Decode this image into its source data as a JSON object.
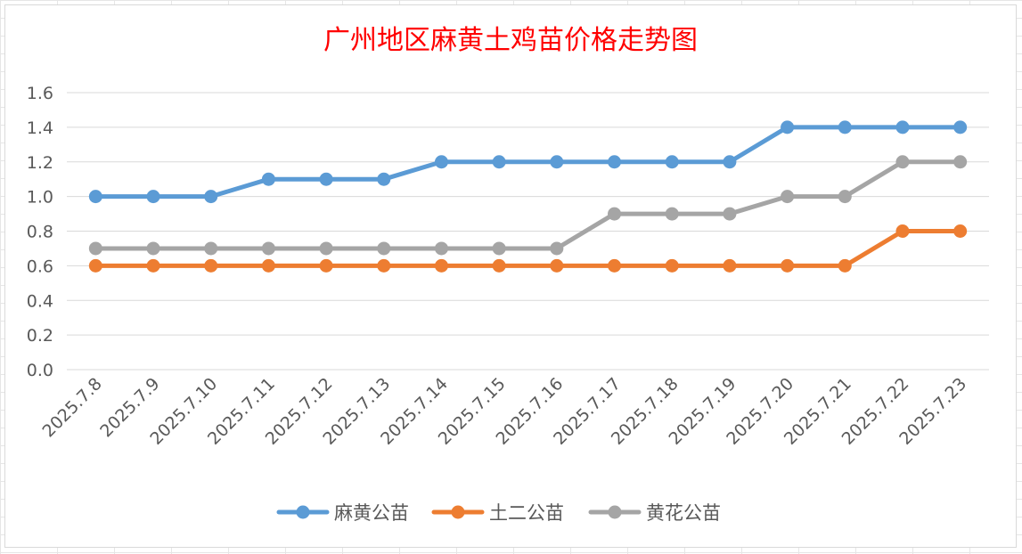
{
  "chart_data": {
    "type": "line",
    "title": "广州地区麻黄土鸡苗价格走势图",
    "xlabel": "",
    "ylabel": "",
    "categories": [
      "2025.7.8",
      "2025.7.9",
      "2025.7.10",
      "2025.7.11",
      "2025.7.12",
      "2025.7.13",
      "2025.7.14",
      "2025.7.15",
      "2025.7.16",
      "2025.7.17",
      "2025.7.18",
      "2025.7.19",
      "2025.7.20",
      "2025.7.21",
      "2025.7.22",
      "2025.7.23"
    ],
    "yticks": [
      "0.0",
      "0.2",
      "0.4",
      "0.6",
      "0.8",
      "1.0",
      "1.2",
      "1.4",
      "1.6"
    ],
    "ylim": [
      0,
      1.6
    ],
    "grid": true,
    "legend_position": "bottom",
    "series": [
      {
        "name": "麻黄公苗",
        "color": "#5b9bd5",
        "values": [
          1.0,
          1.0,
          1.0,
          1.1,
          1.1,
          1.1,
          1.2,
          1.2,
          1.2,
          1.2,
          1.2,
          1.2,
          1.4,
          1.4,
          1.4,
          1.4
        ]
      },
      {
        "name": "土二公苗",
        "color": "#ed7d31",
        "values": [
          0.6,
          0.6,
          0.6,
          0.6,
          0.6,
          0.6,
          0.6,
          0.6,
          0.6,
          0.6,
          0.6,
          0.6,
          0.6,
          0.6,
          0.8,
          0.8
        ]
      },
      {
        "name": "黄花公苗",
        "color": "#a5a5a5",
        "values": [
          0.7,
          0.7,
          0.7,
          0.7,
          0.7,
          0.7,
          0.7,
          0.7,
          0.7,
          0.9,
          0.9,
          0.9,
          1.0,
          1.0,
          1.2,
          1.2
        ]
      }
    ]
  }
}
